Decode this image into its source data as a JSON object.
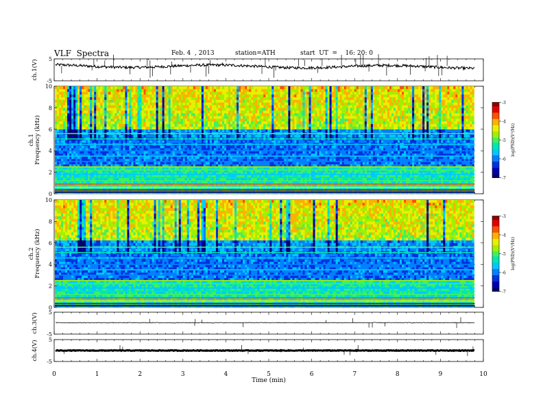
{
  "header": {
    "title": "VLF  Spectra",
    "date": "Feb. 4  , 2013",
    "station": "station=ATH",
    "start": "start  UT  =    16: 20: 0"
  },
  "chart_data": [
    {
      "type": "line",
      "panel": "ch1",
      "ylabel": "ch.1(V)",
      "ylim": [
        -5,
        5
      ],
      "yticks": [
        "5",
        "-5"
      ],
      "grid": false
    },
    {
      "type": "heatmap",
      "panel": "ch1-spectrogram",
      "ylabel": "ch.1\nFrequency (kHz)",
      "ylim": [
        0,
        10
      ],
      "yticks": [
        "0",
        "2",
        "4",
        "6",
        "8",
        "10"
      ],
      "colorbar": {
        "label": "log(PSD)(V²/Hz)",
        "range": [
          -7,
          -3
        ],
        "ticks": [
          "-3",
          "-4",
          "-5",
          "-6",
          "-7"
        ]
      },
      "grid": false
    },
    {
      "type": "heatmap",
      "panel": "ch2-spectrogram",
      "ylabel": "ch.2\nFrequency (kHz)",
      "ylim": [
        0,
        10
      ],
      "yticks": [
        "0",
        "2",
        "4",
        "6",
        "8",
        "10"
      ],
      "colorbar": {
        "label": "log(PSD)(V²/Hz)",
        "range": [
          -7,
          -3
        ],
        "ticks": [
          "-3",
          "-4",
          "-5",
          "-6",
          "-7"
        ]
      },
      "grid": false
    },
    {
      "type": "line",
      "panel": "ch3",
      "ylabel": "ch.3(V)",
      "ylim": [
        -5,
        5
      ],
      "yticks": [
        "5",
        "-5"
      ],
      "grid": false
    },
    {
      "type": "line",
      "panel": "ch4",
      "ylabel": "ch.4(V)",
      "ylim": [
        -5,
        5
      ],
      "yticks": [
        "5",
        "-5"
      ],
      "grid": false
    }
  ],
  "xaxis": {
    "label": "Time  (min)",
    "range": [
      0,
      10
    ],
    "ticks": [
      "0",
      "1",
      "2",
      "3",
      "4",
      "5",
      "6",
      "7",
      "8",
      "9",
      "10"
    ],
    "data_end": 9.8
  },
  "colormap": [
    "#000070",
    "#0000b0",
    "#0030e0",
    "#0080ff",
    "#00c8ff",
    "#00e8b0",
    "#40f060",
    "#a0f000",
    "#e8f000",
    "#ffb000",
    "#ff5000",
    "#e00000",
    "#900000"
  ]
}
